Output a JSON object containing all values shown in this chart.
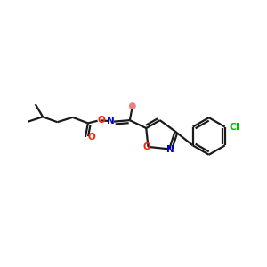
{
  "background_color": "#ffffff",
  "bond_color": "#1a1a1a",
  "oxygen_color": "#ff2200",
  "nitrogen_color": "#0000cc",
  "chlorine_color": "#00bb00",
  "methyl_dot_color": "#e88080",
  "line_width": 1.6,
  "figsize": [
    3.0,
    3.0
  ],
  "dpi": 100,
  "xlim": [
    0,
    10
  ],
  "ylim": [
    2,
    8
  ]
}
